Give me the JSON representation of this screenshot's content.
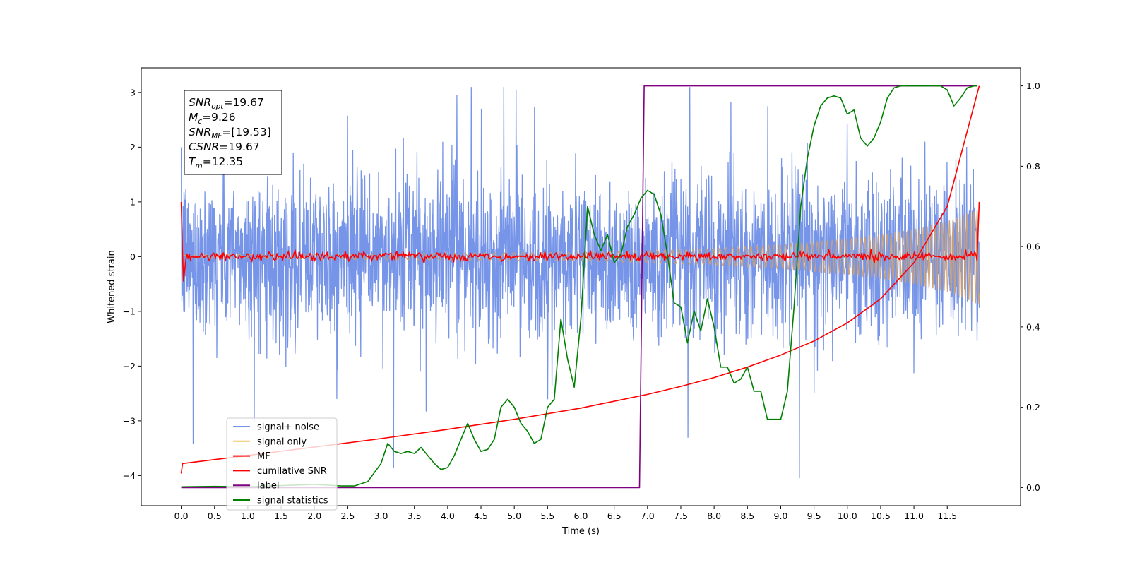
{
  "chart_data": {
    "type": "line",
    "title": "",
    "xlabel": "Time (s)",
    "ylabel": "Whitened strain",
    "y2label": "",
    "xlim": [
      -0.6,
      12.6
    ],
    "ylim": [
      -4.55,
      3.45
    ],
    "y2lim": [
      -0.045,
      1.045
    ],
    "xticks": [
      0.0,
      0.5,
      1.0,
      1.5,
      2.0,
      2.5,
      3.0,
      3.5,
      4.0,
      4.5,
      5.0,
      5.5,
      6.0,
      6.5,
      7.0,
      7.5,
      8.0,
      8.5,
      9.0,
      9.5,
      10.0,
      10.5,
      11.0,
      11.5
    ],
    "xtick_labels": [
      "0.0",
      "0.5",
      "1.0",
      "1.5",
      "2.0",
      "2.5",
      "3.0",
      "3.5",
      "4.0",
      "4.5",
      "5.0",
      "5.5",
      "6.0",
      "6.5",
      "7.0",
      "7.5",
      "8.0",
      "8.5",
      "9.0",
      "9.5",
      "10.0",
      "10.5",
      "11.0",
      "11.5"
    ],
    "yticks": [
      3,
      2,
      1,
      0,
      -1,
      -2,
      -3,
      -4
    ],
    "ytick_labels": [
      "3",
      "2",
      "1",
      "0",
      "−1",
      "−2",
      "−3",
      "−4"
    ],
    "y2ticks": [
      1.0,
      0.8,
      0.6,
      0.4,
      0.2,
      0.0
    ],
    "y2tick_labels": [
      "1.0",
      "0.8",
      "0.6",
      "0.4",
      "0.2",
      "0.0"
    ],
    "grid": false,
    "legend_position": "lower-left",
    "annotation": {
      "lines": [
        {
          "base": "SNR",
          "sub": "opt",
          "rest": "=19.67"
        },
        {
          "base": "M",
          "sub": "c",
          "rest": "=9.26"
        },
        {
          "base": "SNR",
          "sub": "MF",
          "rest": "=[19.53]"
        },
        {
          "base": "CSNR",
          "sub": "",
          "rest": "=19.67"
        },
        {
          "base": "T",
          "sub": "m",
          "rest": "=12.35"
        }
      ]
    },
    "series": [
      {
        "name": "signal+ noise",
        "color": "#7694e8",
        "axis": "left",
        "description": "noisy strain, approx. amplitude ±1.4 with spikes to ±3",
        "noise_sigma": 0.95,
        "x_range": [
          0.0,
          11.98
        ]
      },
      {
        "name": "signal only",
        "color": "#f6c46a",
        "axis": "left",
        "envelope_x": [
          0.0,
          6.0,
          8.0,
          9.0,
          10.0,
          10.5,
          11.0,
          11.5,
          11.98
        ],
        "envelope_y": [
          0.03,
          0.08,
          0.15,
          0.22,
          0.32,
          0.4,
          0.5,
          0.65,
          0.88
        ]
      },
      {
        "name": "MF",
        "color": "#ff0000",
        "axis": "left",
        "x": [
          0.0,
          0.03,
          0.08,
          11.95,
          11.98
        ],
        "y": [
          1.0,
          -0.5,
          0.05,
          0.05,
          1.0
        ],
        "noise": 0.035
      },
      {
        "name": "cumilative SNR",
        "color": "#ff0000",
        "axis": "right",
        "x": [
          0.0,
          0.02,
          1.0,
          2.0,
          3.0,
          4.0,
          5.0,
          6.0,
          7.0,
          7.5,
          8.0,
          8.5,
          9.0,
          9.5,
          10.0,
          10.5,
          11.0,
          11.5,
          11.98
        ],
        "y": [
          0.035,
          0.06,
          0.08,
          0.101,
          0.122,
          0.145,
          0.17,
          0.198,
          0.232,
          0.252,
          0.274,
          0.3,
          0.33,
          0.365,
          0.41,
          0.47,
          0.56,
          0.7,
          1.0
        ]
      },
      {
        "name": "label",
        "color": "#800080",
        "axis": "right",
        "x": [
          0.0,
          6.88,
          6.95,
          11.95
        ],
        "y": [
          0.0,
          0.0,
          1.0,
          1.0
        ]
      },
      {
        "name": "signal statistics",
        "color": "#008000",
        "axis": "right",
        "x": [
          0.0,
          0.5,
          1.0,
          1.5,
          2.0,
          2.2,
          2.4,
          2.6,
          2.8,
          3.0,
          3.1,
          3.2,
          3.3,
          3.4,
          3.5,
          3.6,
          3.7,
          3.8,
          3.9,
          4.0,
          4.1,
          4.2,
          4.3,
          4.4,
          4.5,
          4.6,
          4.7,
          4.8,
          4.9,
          5.0,
          5.1,
          5.2,
          5.3,
          5.4,
          5.5,
          5.6,
          5.7,
          5.8,
          5.9,
          6.0,
          6.1,
          6.2,
          6.3,
          6.4,
          6.5,
          6.6,
          6.7,
          6.8,
          6.9,
          7.0,
          7.1,
          7.2,
          7.3,
          7.4,
          7.5,
          7.6,
          7.7,
          7.8,
          7.9,
          8.0,
          8.1,
          8.2,
          8.3,
          8.4,
          8.5,
          8.6,
          8.7,
          8.8,
          8.9,
          9.0,
          9.1,
          9.2,
          9.3,
          9.4,
          9.5,
          9.6,
          9.7,
          9.8,
          9.9,
          10.0,
          10.1,
          10.2,
          10.3,
          10.4,
          10.5,
          10.6,
          10.7,
          10.8,
          11.0,
          11.2,
          11.4,
          11.5,
          11.6,
          11.7,
          11.8,
          11.9,
          11.95
        ],
        "y": [
          0.002,
          0.003,
          0.002,
          0.005,
          0.008,
          0.006,
          0.004,
          0.004,
          0.015,
          0.06,
          0.11,
          0.09,
          0.085,
          0.09,
          0.085,
          0.1,
          0.08,
          0.06,
          0.045,
          0.05,
          0.08,
          0.12,
          0.16,
          0.12,
          0.09,
          0.095,
          0.12,
          0.2,
          0.22,
          0.2,
          0.16,
          0.14,
          0.11,
          0.12,
          0.2,
          0.22,
          0.42,
          0.32,
          0.25,
          0.42,
          0.7,
          0.63,
          0.59,
          0.63,
          0.56,
          0.58,
          0.65,
          0.68,
          0.72,
          0.74,
          0.73,
          0.68,
          0.58,
          0.46,
          0.45,
          0.36,
          0.44,
          0.39,
          0.47,
          0.4,
          0.3,
          0.3,
          0.26,
          0.27,
          0.3,
          0.24,
          0.24,
          0.17,
          0.17,
          0.17,
          0.24,
          0.45,
          0.7,
          0.82,
          0.9,
          0.95,
          0.97,
          0.975,
          0.97,
          0.93,
          0.94,
          0.87,
          0.85,
          0.87,
          0.91,
          0.97,
          0.995,
          1.0,
          1.0,
          1.0,
          1.0,
          0.99,
          0.95,
          0.97,
          0.995,
          1.0,
          1.0
        ]
      }
    ]
  }
}
